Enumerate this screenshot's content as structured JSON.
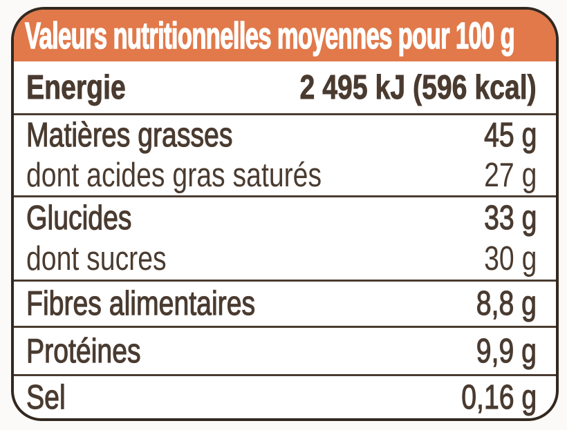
{
  "colors": {
    "header_bg": "#e1794a",
    "header_text": "#ffffff",
    "text": "#4a3b30",
    "border": "#33281f",
    "panel_bg": "#ffffff",
    "page_bg": "#fbfaf8"
  },
  "table": {
    "title": "Valeurs nutritionnelles moyennes pour 100 g",
    "rows": {
      "energie": {
        "label": "Energie",
        "value": "2 495 kJ (596 kcal)"
      },
      "fat": {
        "label": "Matières grasses",
        "value": "45 g"
      },
      "fat_saturated": {
        "label": "dont acides gras saturés",
        "value": "27 g"
      },
      "carbs": {
        "label": "Glucides",
        "value": "33 g"
      },
      "sugars": {
        "label": "dont sucres",
        "value": "30 g"
      },
      "fiber": {
        "label": "Fibres alimentaires",
        "value": "8,8 g"
      },
      "protein": {
        "label": "Protéines",
        "value": "9,9 g"
      },
      "salt": {
        "label": "Sel",
        "value": "0,16 g"
      }
    }
  }
}
